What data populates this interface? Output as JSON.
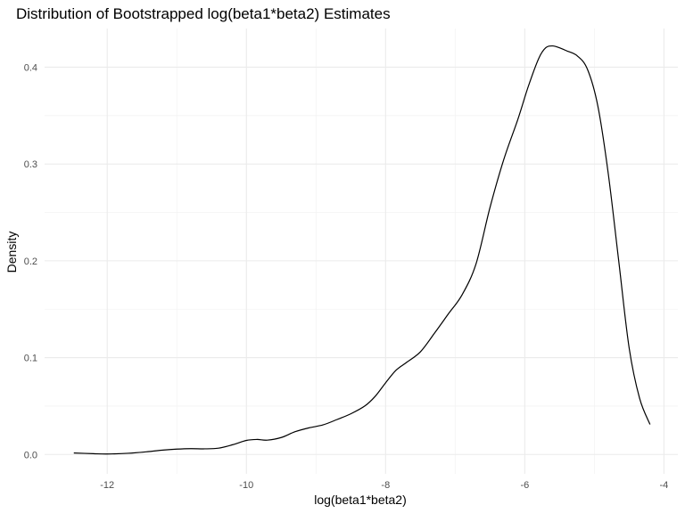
{
  "chart_data": {
    "type": "line",
    "title": "Distribution of Bootstrapped log(beta1*beta2) Estimates",
    "xlabel": "log(beta1*beta2)",
    "ylabel": "Density",
    "xlim": [
      -12.9,
      -3.8
    ],
    "ylim": [
      -0.02,
      0.44
    ],
    "x_ticks": [
      -12,
      -10,
      -8,
      -6,
      -4
    ],
    "y_ticks": [
      0.0,
      0.1,
      0.2,
      0.3,
      0.4
    ],
    "x_tick_labels": [
      "-12",
      "-10",
      "-8",
      "-6",
      "-4"
    ],
    "y_tick_labels": [
      "0.0",
      "0.1",
      "0.2",
      "0.3",
      "0.4"
    ],
    "grid": true,
    "legend": "none",
    "series": [
      {
        "color": "#000000",
        "x": [
          -12.48,
          -12.2,
          -12.0,
          -11.7,
          -11.4,
          -11.2,
          -11.0,
          -10.8,
          -10.6,
          -10.4,
          -10.2,
          -10.0,
          -9.85,
          -9.7,
          -9.5,
          -9.3,
          -9.1,
          -8.9,
          -8.7,
          -8.5,
          -8.3,
          -8.15,
          -8.0,
          -7.85,
          -7.7,
          -7.5,
          -7.3,
          -7.1,
          -6.9,
          -6.7,
          -6.5,
          -6.3,
          -6.1,
          -5.95,
          -5.8,
          -5.7,
          -5.6,
          -5.5,
          -5.4,
          -5.25,
          -5.1,
          -4.95,
          -4.8,
          -4.65,
          -4.5,
          -4.35,
          -4.2
        ],
        "y": [
          0.0015,
          0.0008,
          0.0005,
          0.0012,
          0.003,
          0.0045,
          0.0055,
          0.006,
          0.0058,
          0.0065,
          0.01,
          0.0145,
          0.0155,
          0.0148,
          0.0175,
          0.0235,
          0.0275,
          0.0305,
          0.036,
          0.042,
          0.05,
          0.06,
          0.074,
          0.087,
          0.095,
          0.106,
          0.125,
          0.145,
          0.165,
          0.197,
          0.255,
          0.305,
          0.346,
          0.38,
          0.409,
          0.42,
          0.422,
          0.42,
          0.417,
          0.412,
          0.398,
          0.36,
          0.29,
          0.2,
          0.11,
          0.058,
          0.031
        ]
      }
    ]
  }
}
